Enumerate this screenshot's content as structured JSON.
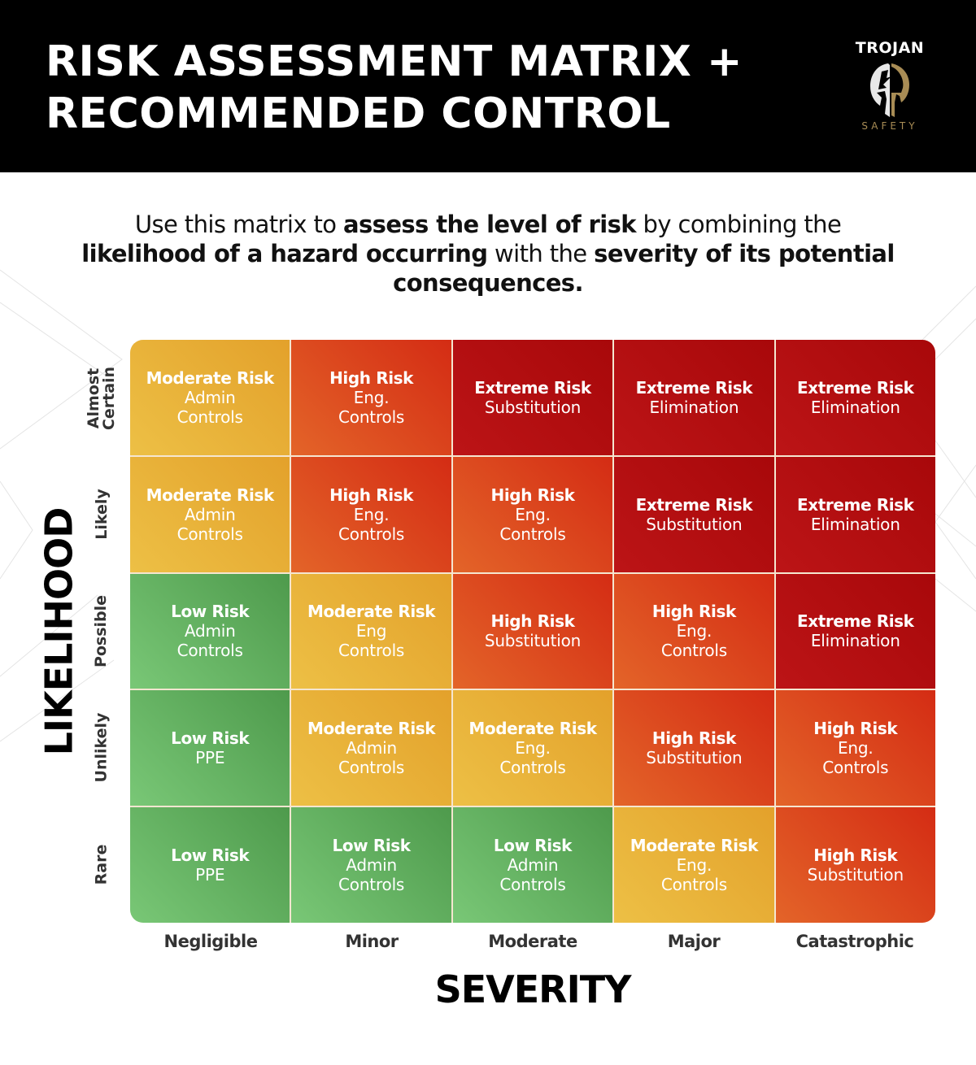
{
  "header": {
    "title_line1": "RISK ASSESSMENT MATRIX +",
    "title_line2": "RECOMMENDED CONTROL",
    "logo": {
      "top": "TROJAN",
      "bottom": "SAFETY",
      "icon": "spartan-helmet-icon"
    }
  },
  "intro": {
    "parts": [
      {
        "text": "Use this matrix to ",
        "bold": false
      },
      {
        "text": "assess the level of risk",
        "bold": true
      },
      {
        "text": " by combining the ",
        "bold": false
      },
      {
        "text": "likelihood of a hazard occurring",
        "bold": true
      },
      {
        "text": " with the ",
        "bold": false
      },
      {
        "text": "severity of its potential consequences.",
        "bold": true
      }
    ]
  },
  "colors": {
    "Low": "#5fae5c",
    "Moderate": "#e8b23a",
    "High": "#db4f22",
    "Extreme": "#b00d0e"
  },
  "chart_data": {
    "type": "heatmap",
    "title": "RISK ASSESSMENT MATRIX + RECOMMENDED CONTROL",
    "xlabel": "SEVERITY",
    "ylabel": "LIKELIHOOD",
    "x_categories": [
      "Negligible",
      "Minor",
      "Moderate",
      "Major",
      "Catastrophic"
    ],
    "y_categories": [
      "Almost Certain",
      "Likely",
      "Possible",
      "Unlikely",
      "Rare"
    ],
    "cells": [
      [
        {
          "risk": "Moderate Risk",
          "control": "Admin\nControls",
          "level": "Moderate"
        },
        {
          "risk": "High Risk",
          "control": "Eng.\nControls",
          "level": "High"
        },
        {
          "risk": "Extreme Risk",
          "control": "Substitution",
          "level": "Extreme"
        },
        {
          "risk": "Extreme Risk",
          "control": "Elimination",
          "level": "Extreme"
        },
        {
          "risk": "Extreme Risk",
          "control": "Elimination",
          "level": "Extreme"
        }
      ],
      [
        {
          "risk": "Moderate Risk",
          "control": "Admin\nControls",
          "level": "Moderate"
        },
        {
          "risk": "High Risk",
          "control": "Eng.\nControls",
          "level": "High"
        },
        {
          "risk": "High Risk",
          "control": "Eng.\nControls",
          "level": "High"
        },
        {
          "risk": "Extreme Risk",
          "control": "Substitution",
          "level": "Extreme"
        },
        {
          "risk": "Extreme Risk",
          "control": "Elimination",
          "level": "Extreme"
        }
      ],
      [
        {
          "risk": "Low Risk",
          "control": "Admin\nControls",
          "level": "Low"
        },
        {
          "risk": "Moderate Risk",
          "control": "Eng\nControls",
          "level": "Moderate"
        },
        {
          "risk": "High Risk",
          "control": "Substitution",
          "level": "High"
        },
        {
          "risk": "High Risk",
          "control": "Eng.\nControls",
          "level": "High"
        },
        {
          "risk": "Extreme Risk",
          "control": "Elimination",
          "level": "Extreme"
        }
      ],
      [
        {
          "risk": "Low Risk",
          "control": "PPE",
          "level": "Low"
        },
        {
          "risk": "Moderate Risk",
          "control": "Admin\nControls",
          "level": "Moderate"
        },
        {
          "risk": "Moderate Risk",
          "control": "Eng.\nControls",
          "level": "Moderate"
        },
        {
          "risk": "High Risk",
          "control": "Substitution",
          "level": "High"
        },
        {
          "risk": "High Risk",
          "control": "Eng.\nControls",
          "level": "High"
        }
      ],
      [
        {
          "risk": "Low Risk",
          "control": "PPE",
          "level": "Low"
        },
        {
          "risk": "Low Risk",
          "control": "Admin\nControls",
          "level": "Low"
        },
        {
          "risk": "Low Risk",
          "control": "Admin\nControls",
          "level": "Low"
        },
        {
          "risk": "Moderate Risk",
          "control": "Eng.\nControls",
          "level": "Moderate"
        },
        {
          "risk": "High Risk",
          "control": "Substitution",
          "level": "High"
        }
      ]
    ],
    "legend": []
  },
  "axes": {
    "likelihood_title": "LIKELIHOOD",
    "severity_title": "SEVERITY",
    "row_labels": [
      "Almost\nCertain",
      "Likely",
      "Possible",
      "Unlikely",
      "Rare"
    ],
    "col_labels": [
      "Negligible",
      "Minor",
      "Moderate",
      "Major",
      "Catastrophic"
    ]
  }
}
